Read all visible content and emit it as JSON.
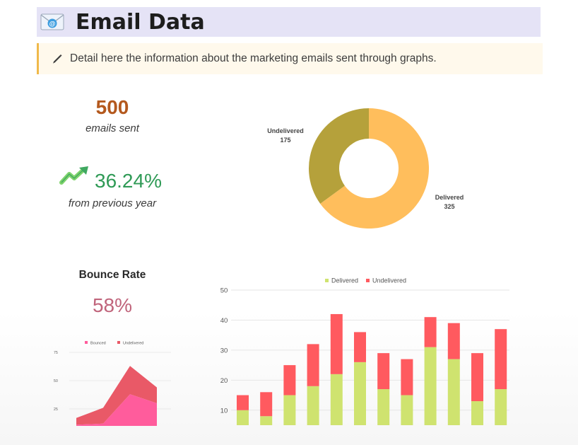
{
  "header": {
    "title": "Email Data"
  },
  "callout": {
    "text": "Detail here the information about the marketing emails sent through graphs."
  },
  "kpis": {
    "emails_sent_value": "500",
    "emails_sent_label": "emails sent",
    "growth_value": "36.24%",
    "growth_label": "from previous year"
  },
  "bounce": {
    "title": "Bounce Rate",
    "value": "58%"
  },
  "colors": {
    "delivered_donut": "#ffbe5c",
    "undelivered_donut": "#b5a13b",
    "delivered_bar": "#cfe36f",
    "undelivered_bar": "#ff5a5f",
    "bounced": "#ff5c9c",
    "undelivered_area": "#e95967",
    "brand_orange": "#b4591e",
    "growth_green": "#2f9a56",
    "bounce_pink": "#c0647b"
  },
  "icons": {
    "header": "email-icon",
    "callout": "pen-icon",
    "trend": "trend-up-icon"
  },
  "chart_data": [
    {
      "type": "pie",
      "donut": true,
      "labels": [
        "Undelivered",
        "Delivered"
      ],
      "values": [
        175,
        325
      ],
      "colors": [
        "#b5a13b",
        "#ffbe5c"
      ]
    },
    {
      "type": "area",
      "stacked": true,
      "legend": [
        "Bounced",
        "Undelivered"
      ],
      "legend_position": "top",
      "yticks": [
        "25",
        "50",
        "75"
      ],
      "ylim": [
        10,
        85
      ],
      "x": [
        1,
        2,
        3,
        4
      ],
      "series": [
        {
          "name": "Bounced",
          "values": [
            11,
            12,
            38,
            30
          ]
        },
        {
          "name": "Undelivered",
          "values": [
            6,
            14,
            25,
            14
          ]
        }
      ]
    },
    {
      "type": "bar",
      "stacked": true,
      "legend": [
        "Delivered",
        "Undelivered"
      ],
      "legend_position": "top",
      "yticks": [
        "10",
        "20",
        "30",
        "40",
        "50"
      ],
      "ylim": [
        5,
        50
      ],
      "grid": true,
      "series": [
        {
          "name": "Delivered",
          "values": [
            10,
            8,
            15,
            18,
            22,
            26,
            17,
            15,
            31,
            27,
            13,
            17
          ]
        },
        {
          "name": "Undelivered",
          "values": [
            5,
            8,
            10,
            14,
            20,
            10,
            12,
            12,
            10,
            12,
            16,
            20
          ]
        }
      ]
    }
  ]
}
